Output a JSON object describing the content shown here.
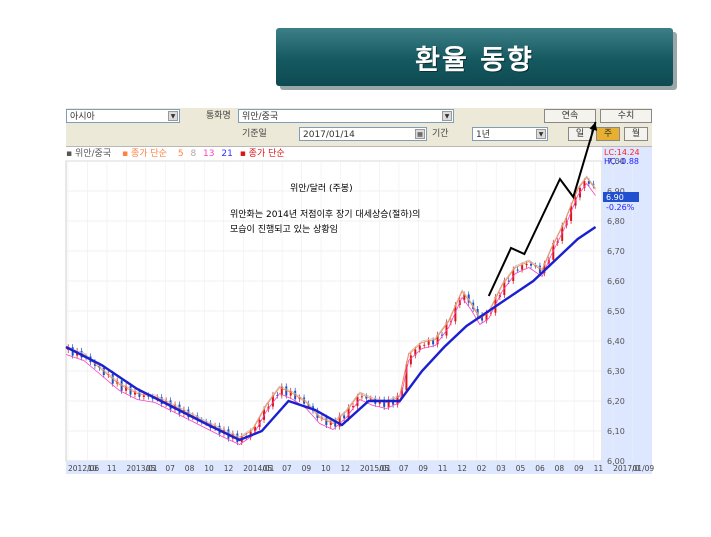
{
  "slide_title": "환율 동향",
  "toolbar": {
    "region_value": "아시아",
    "currency_label": "통화명",
    "currency_value": "위안/중국",
    "continuous_button": "연속",
    "value_button": "수치",
    "date_label": "기준일",
    "date_value": "2017/01/14",
    "period_label": "기간",
    "period_value": "1년",
    "day_button": "일",
    "week_button": "주",
    "month_button": "월"
  },
  "legend": {
    "series_name": "위안/중국",
    "ma_label": "종가 단순",
    "ma5": "5",
    "ma8": "8",
    "ma13": "13",
    "ma21": "21",
    "volume_label": "종가 단순"
  },
  "colors": {
    "up_candle": "#d81818",
    "down_candle": "#1850c8",
    "ma5": "#ff8040",
    "ma8": "#c0c0c0",
    "ma13": "#ff40c0",
    "ma21": "#3030ff",
    "trend": "#1a20d0",
    "arrow": "#000000"
  },
  "chart_data": {
    "type": "line",
    "title": "위안/달러 (주봉)",
    "annotation_line1": "위안화는 2014년 저점이후 장기 대세상승(절하)의",
    "annotation_line2": "모습이 진행되고 있는 상황임",
    "ylim": [
      6.0,
      7.0
    ],
    "y_ticks": [
      "6,00",
      "6,10",
      "6,20",
      "6,30",
      "6,40",
      "6,50",
      "6,60",
      "6,70",
      "6,80",
      "6,90",
      "7,00"
    ],
    "x_ticks": [
      "2012/06",
      "10",
      "11",
      "2013/01",
      "05",
      "07",
      "08",
      "10",
      "12",
      "2014/01",
      "05",
      "07",
      "09",
      "10",
      "12",
      "2015/01",
      "05",
      "07",
      "09",
      "11",
      "12",
      "02",
      "03",
      "05",
      "06",
      "08",
      "09",
      "11",
      "2017/0",
      "01/09"
    ],
    "lc_label": "LC:14.24",
    "hc_label": "HC:-0.88",
    "last_price": "6.90",
    "last_change": "-0.26%",
    "x_index_range": [
      0,
      240
    ],
    "price_path": [
      [
        0,
        6.37
      ],
      [
        8,
        6.35
      ],
      [
        16,
        6.3
      ],
      [
        24,
        6.25
      ],
      [
        32,
        6.22
      ],
      [
        40,
        6.21
      ],
      [
        48,
        6.18
      ],
      [
        56,
        6.15
      ],
      [
        64,
        6.12
      ],
      [
        72,
        6.09
      ],
      [
        78,
        6.07
      ],
      [
        84,
        6.1
      ],
      [
        90,
        6.18
      ],
      [
        96,
        6.24
      ],
      [
        102,
        6.22
      ],
      [
        108,
        6.19
      ],
      [
        114,
        6.14
      ],
      [
        120,
        6.12
      ],
      [
        126,
        6.16
      ],
      [
        132,
        6.22
      ],
      [
        138,
        6.2
      ],
      [
        144,
        6.19
      ],
      [
        150,
        6.21
      ],
      [
        154,
        6.35
      ],
      [
        160,
        6.39
      ],
      [
        166,
        6.4
      ],
      [
        172,
        6.46
      ],
      [
        178,
        6.56
      ],
      [
        182,
        6.52
      ],
      [
        186,
        6.47
      ],
      [
        190,
        6.49
      ],
      [
        196,
        6.58
      ],
      [
        202,
        6.64
      ],
      [
        208,
        6.66
      ],
      [
        214,
        6.63
      ],
      [
        218,
        6.7
      ],
      [
        224,
        6.79
      ],
      [
        230,
        6.9
      ],
      [
        234,
        6.94
      ],
      [
        238,
        6.9
      ]
    ],
    "trend_path": [
      [
        0,
        6.38
      ],
      [
        16,
        6.32
      ],
      [
        32,
        6.24
      ],
      [
        48,
        6.18
      ],
      [
        64,
        6.12
      ],
      [
        78,
        6.07
      ],
      [
        88,
        6.1
      ],
      [
        100,
        6.2
      ],
      [
        112,
        6.17
      ],
      [
        124,
        6.12
      ],
      [
        136,
        6.2
      ],
      [
        150,
        6.2
      ],
      [
        160,
        6.3
      ],
      [
        170,
        6.38
      ],
      [
        180,
        6.45
      ],
      [
        190,
        6.5
      ],
      [
        200,
        6.55
      ],
      [
        210,
        6.6
      ],
      [
        220,
        6.67
      ],
      [
        230,
        6.74
      ],
      [
        238,
        6.78
      ]
    ],
    "arrow_path": [
      [
        190,
        6.55
      ],
      [
        200,
        6.71
      ],
      [
        206,
        6.69
      ],
      [
        222,
        6.94
      ],
      [
        228,
        6.88
      ],
      [
        238,
        7.13
      ]
    ]
  }
}
